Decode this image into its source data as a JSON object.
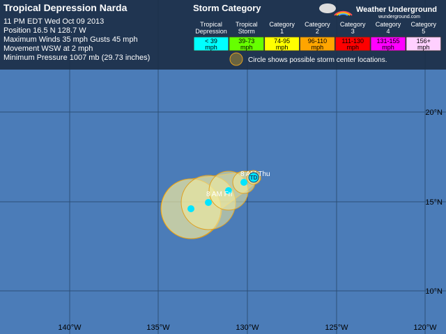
{
  "header": {
    "title": "Tropical Depression Narda",
    "lines": [
      "11 PM EDT Wed Oct 09 2013",
      "Position 16.5 N 128.7 W",
      "Maximum Winds 35 mph  Gusts 45 mph",
      "Movement WSW at 2 mph",
      "Minimum Pressure 1007 mb (29.73 inches)"
    ]
  },
  "legend": {
    "title": "Storm Category",
    "items": [
      {
        "label": [
          "Tropical",
          "Depression"
        ],
        "range": [
          "< 39",
          "mph"
        ],
        "color": "#00ffff"
      },
      {
        "label": [
          "Tropical",
          "Storm"
        ],
        "range": [
          "39-73",
          "mph"
        ],
        "color": "#66ff00"
      },
      {
        "label": [
          "Category",
          "1"
        ],
        "range": [
          "74-95",
          "mph"
        ],
        "color": "#ffff00"
      },
      {
        "label": [
          "Category",
          "2"
        ],
        "range": [
          "96-110",
          "mph"
        ],
        "color": "#ffa500"
      },
      {
        "label": [
          "Category",
          "3"
        ],
        "range": [
          "111-130",
          "mph"
        ],
        "color": "#ff0000"
      },
      {
        "label": [
          "Category",
          "4"
        ],
        "range": [
          "131-155",
          "mph"
        ],
        "color": "#ff00ff"
      },
      {
        "label": [
          "Category",
          "5"
        ],
        "range": [
          "156+",
          "mph"
        ],
        "color": "#ffd0ff"
      }
    ],
    "note": "Circle shows possible storm center locations."
  },
  "logo": {
    "name": "Weather Underground",
    "url": "wunderground.com"
  },
  "map": {
    "labels": [
      "8 AM Thu",
      "8 AM Fri"
    ],
    "storm_marker": "TD",
    "latitudes": [
      "20°N",
      "15°N",
      "10°N"
    ],
    "longitudes": [
      "140°W",
      "135°W",
      "130°W",
      "125°W",
      "120°W"
    ]
  }
}
